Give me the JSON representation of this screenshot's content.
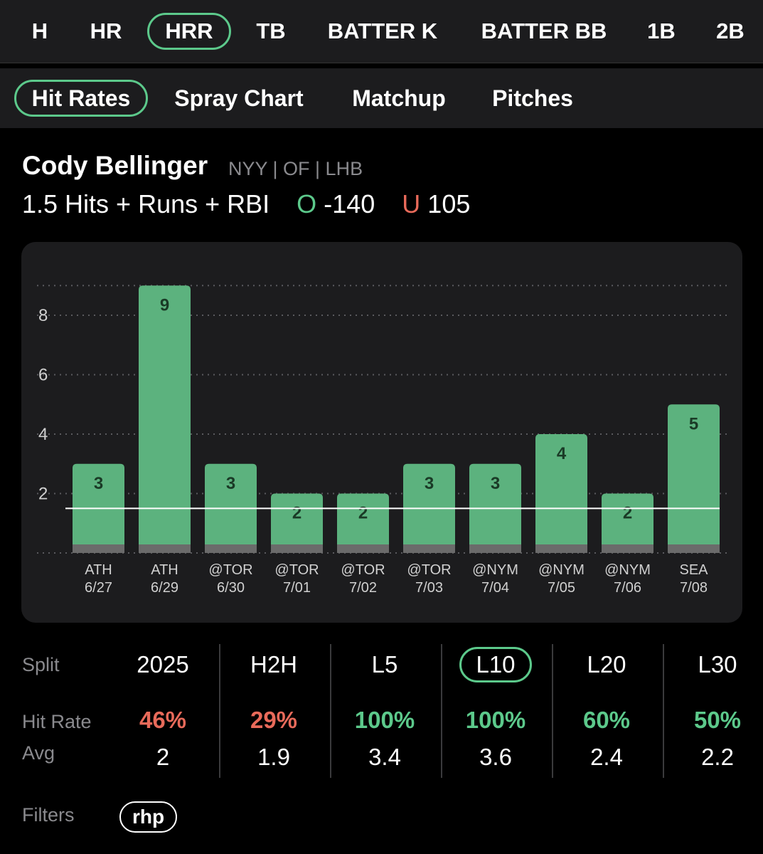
{
  "market_tabs": [
    {
      "label": "H",
      "active": false
    },
    {
      "label": "HR",
      "active": false
    },
    {
      "label": "HRR",
      "active": true
    },
    {
      "label": "TB",
      "active": false
    },
    {
      "label": "BATTER K",
      "active": false
    },
    {
      "label": "BATTER BB",
      "active": false
    },
    {
      "label": "1B",
      "active": false
    },
    {
      "label": "2B",
      "active": false
    }
  ],
  "sub_tabs": [
    {
      "label": "Hit Rates",
      "active": true
    },
    {
      "label": "Spray Chart",
      "active": false
    },
    {
      "label": "Matchup",
      "active": false
    },
    {
      "label": "Pitches",
      "active": false
    }
  ],
  "player": {
    "name": "Cody Bellinger",
    "meta": "NYY | OF | LHB",
    "prop_line": "1.5 Hits + Runs + RBI",
    "over_letter": "O",
    "over_odds": "-140",
    "under_letter": "U",
    "under_odds": "105"
  },
  "chart_data": {
    "type": "bar",
    "categories": [
      "ATH 6/27",
      "ATH 6/29",
      "@TOR 6/30",
      "@TOR 7/01",
      "@TOR 7/02",
      "@TOR 7/03",
      "@NYM 7/04",
      "@NYM 7/05",
      "@NYM 7/06",
      "SEA 7/08"
    ],
    "category_lines": [
      [
        "ATH",
        "6/27"
      ],
      [
        "ATH",
        "6/29"
      ],
      [
        "@TOR",
        "6/30"
      ],
      [
        "@TOR",
        "7/01"
      ],
      [
        "@TOR",
        "7/02"
      ],
      [
        "@TOR",
        "7/03"
      ],
      [
        "@NYM",
        "7/04"
      ],
      [
        "@NYM",
        "7/05"
      ],
      [
        "@NYM",
        "7/06"
      ],
      [
        "SEA",
        "7/08"
      ]
    ],
    "values": [
      3,
      9,
      3,
      2,
      2,
      3,
      3,
      4,
      2,
      5
    ],
    "data_labels": [
      "3",
      "9",
      "3",
      "2",
      "2",
      "3",
      "3",
      "4",
      "2",
      "5"
    ],
    "y_ticks": [
      2,
      4,
      6,
      8
    ],
    "y_tick_labels": [
      "2",
      "4",
      "6",
      "8"
    ],
    "ylim": [
      0,
      9.75
    ],
    "threshold_line": 1.5,
    "grid": "dotted horizontal",
    "bar_color": "#5cb27e",
    "bar_base_color": "#6b6b6b",
    "label_color": "#1a3a26"
  },
  "splits": {
    "row_labels": {
      "split": "Split",
      "hit_rate": "Hit Rate",
      "avg": "Avg"
    },
    "columns": [
      {
        "label": "2025",
        "hit_rate": "46%",
        "rate_color": "#e86a5a",
        "avg": "2",
        "active": false
      },
      {
        "label": "H2H",
        "hit_rate": "29%",
        "rate_color": "#e86a5a",
        "avg": "1.9",
        "active": false
      },
      {
        "label": "L5",
        "hit_rate": "100%",
        "rate_color": "#5cc98b",
        "avg": "3.4",
        "active": false
      },
      {
        "label": "L10",
        "hit_rate": "100%",
        "rate_color": "#5cc98b",
        "avg": "3.6",
        "active": true
      },
      {
        "label": "L20",
        "hit_rate": "60%",
        "rate_color": "#5cc98b",
        "avg": "2.4",
        "active": false
      },
      {
        "label": "L30",
        "hit_rate": "50%",
        "rate_color": "#5cc98b",
        "avg": "2.2",
        "active": false
      }
    ]
  },
  "filters": {
    "label": "Filters",
    "chips": [
      "rhp"
    ]
  },
  "colors": {
    "accent": "#5cc98b",
    "negative": "#e86a5a",
    "panel": "#1c1c1e"
  }
}
